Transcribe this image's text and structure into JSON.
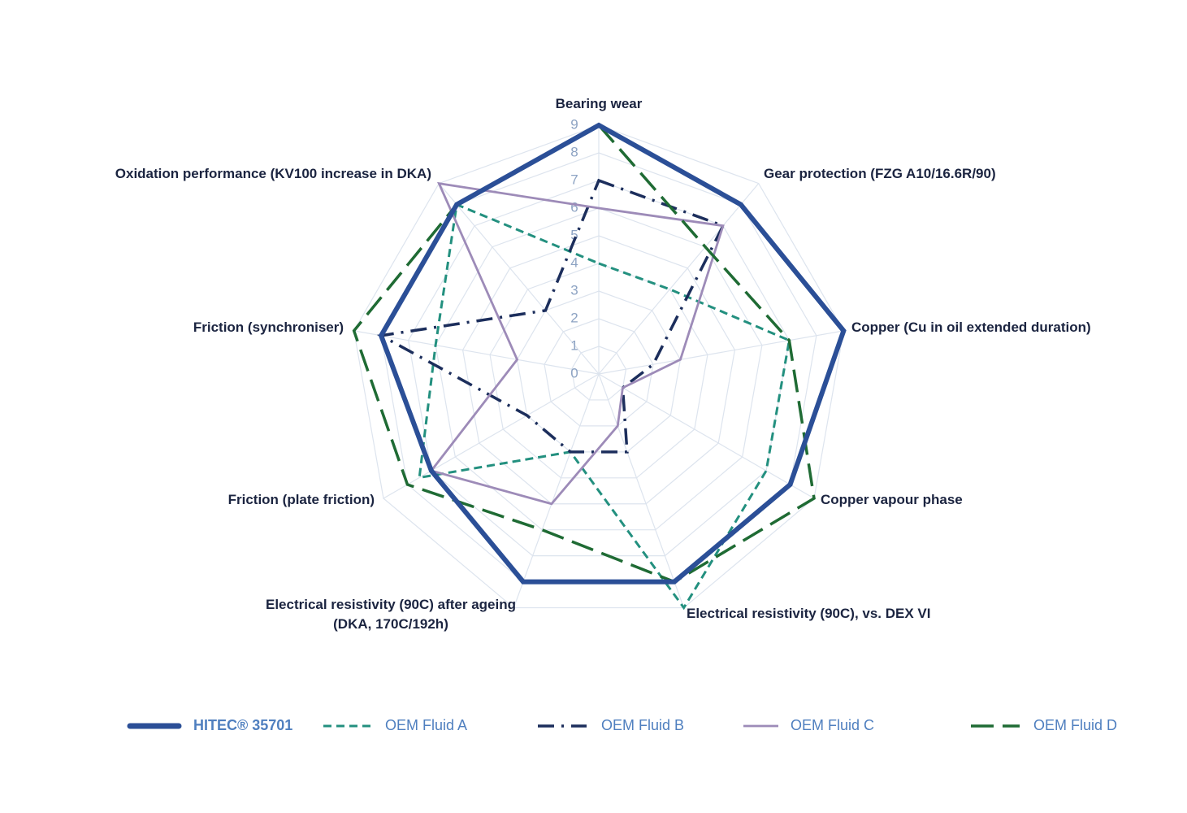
{
  "chart_data": {
    "type": "radar",
    "categories": [
      "Bearing wear",
      "Gear protection (FZG A10/16.6R/90)",
      "Copper (Cu in oil extended duration)",
      "Copper vapour phase",
      "Electrical resistivity (90C), vs. DEX VI",
      "Electrical resistivity (90C) after ageing (DKA, 170C/192h)",
      "Friction (plate friction)",
      "Friction (synchroniser)",
      "Oxidation performance (KV100 increase in DKA)"
    ],
    "ylim": [
      0,
      9
    ],
    "yticks": [
      0,
      1,
      2,
      3,
      4,
      5,
      6,
      7,
      8,
      9
    ],
    "grid": true,
    "series": [
      {
        "name": "HITEC® 35701",
        "color": "#2b4f97",
        "values": [
          9,
          8,
          9,
          8,
          8,
          8,
          7,
          8,
          8
        ]
      },
      {
        "name": "OEM Fluid A",
        "color": "#23907f",
        "values": [
          4,
          4,
          7,
          7,
          9,
          3,
          7.5,
          6,
          8
        ]
      },
      {
        "name": "OEM Fluid B",
        "color": "#1c2e5c",
        "values": [
          7,
          7,
          2,
          1,
          3,
          3,
          3,
          8,
          3
        ]
      },
      {
        "name": "OEM Fluid C",
        "color": "#9d8bb8",
        "values": [
          6,
          7,
          3,
          1,
          2,
          5,
          7,
          3,
          9
        ]
      },
      {
        "name": "OEM Fluid D",
        "color": "#1f6b34",
        "values": [
          9,
          6,
          7,
          9,
          8,
          6,
          8,
          9,
          8
        ]
      }
    ],
    "legend": "bottom"
  }
}
